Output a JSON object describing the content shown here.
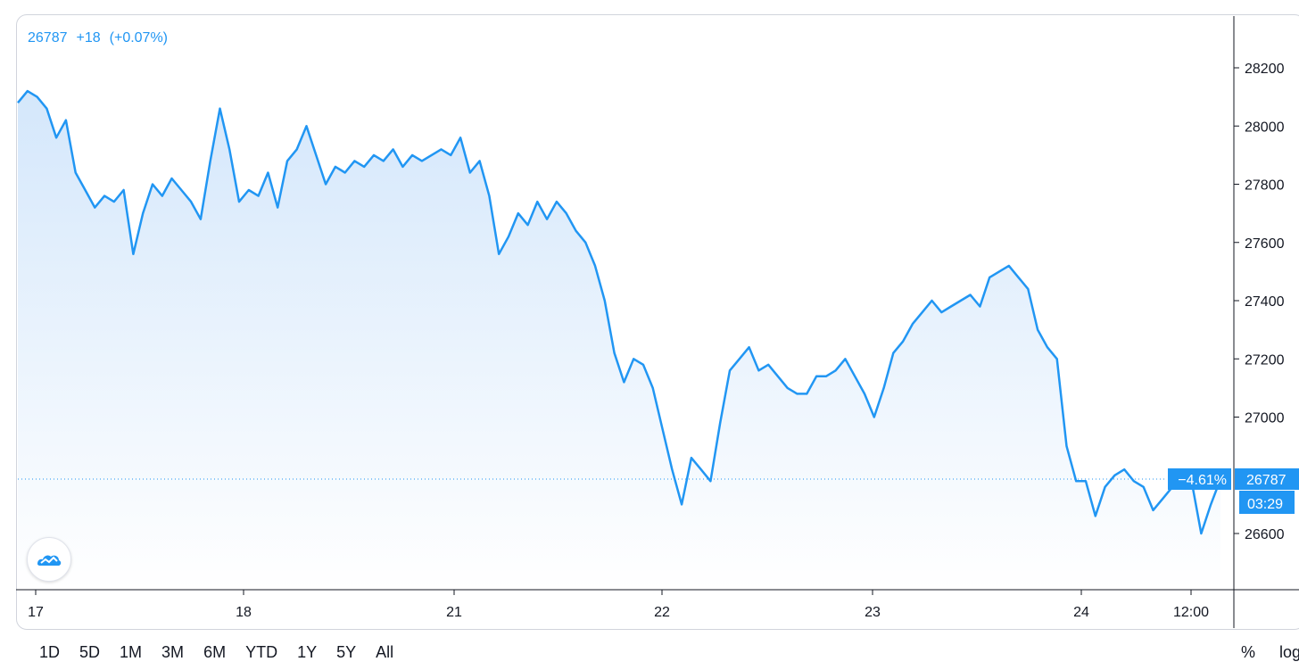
{
  "header": {
    "price": "26787",
    "change": "+18",
    "change_pct": "(+0.07%)"
  },
  "colors": {
    "line": "#2196f3",
    "fill_top": "#d4e7fb",
    "fill_bottom": "#ffffff",
    "label_bg": "#2196f3",
    "axis": "#131722"
  },
  "price_label": {
    "pct": "−4.61%",
    "value": "26787",
    "countdown": "03:29"
  },
  "toolbar": {
    "ranges": [
      "1D",
      "5D",
      "1M",
      "3M",
      "6M",
      "YTD",
      "1Y",
      "5Y",
      "All"
    ],
    "percent_label": "%",
    "log_label": "log"
  },
  "logo_icon": "tradingview-cloud-icon",
  "chart_data": {
    "type": "area",
    "x_ticks": [
      "17",
      "18",
      "21",
      "22",
      "23",
      "24",
      "12:00"
    ],
    "y_ticks": [
      26600,
      27000,
      27200,
      27400,
      27600,
      27800,
      28000,
      28200
    ],
    "ylim": [
      26400,
      28380
    ],
    "last_value": 26787,
    "grid": false,
    "series": [
      {
        "values": [
          28080,
          28120,
          28100,
          28060,
          27960,
          28020,
          27840,
          27780,
          27720,
          27760,
          27740,
          27780,
          27560,
          27700,
          27800,
          27760,
          27820,
          27780,
          27740,
          27680,
          27880,
          28060,
          27920,
          27740,
          27780,
          27760,
          27840,
          27720,
          27880,
          27920,
          28000,
          27900,
          27800,
          27860,
          27840,
          27880,
          27860,
          27900,
          27880,
          27920,
          27860,
          27900,
          27880,
          27900,
          27920,
          27900,
          27960,
          27840,
          27880,
          27760,
          27560,
          27620,
          27700,
          27660,
          27740,
          27680,
          27740,
          27700,
          27640,
          27600,
          27520,
          27400,
          27220,
          27120,
          27200,
          27180,
          27100,
          26960,
          26820,
          26700,
          26860,
          26820,
          26780,
          26980,
          27160,
          27200,
          27240,
          27160,
          27180,
          27140,
          27100,
          27080,
          27080,
          27140,
          27140,
          27160,
          27200,
          27140,
          27080,
          27000,
          27100,
          27220,
          27260,
          27320,
          27360,
          27400,
          27360,
          27380,
          27400,
          27420,
          27380,
          27480,
          27500,
          27520,
          27480,
          27440,
          27300,
          27240,
          27200,
          26900,
          26780,
          26780,
          26660,
          26760,
          26800,
          26820,
          26780,
          26760,
          26680,
          26720,
          26760,
          26800,
          26780,
          26600,
          26700,
          26787
        ]
      }
    ]
  }
}
